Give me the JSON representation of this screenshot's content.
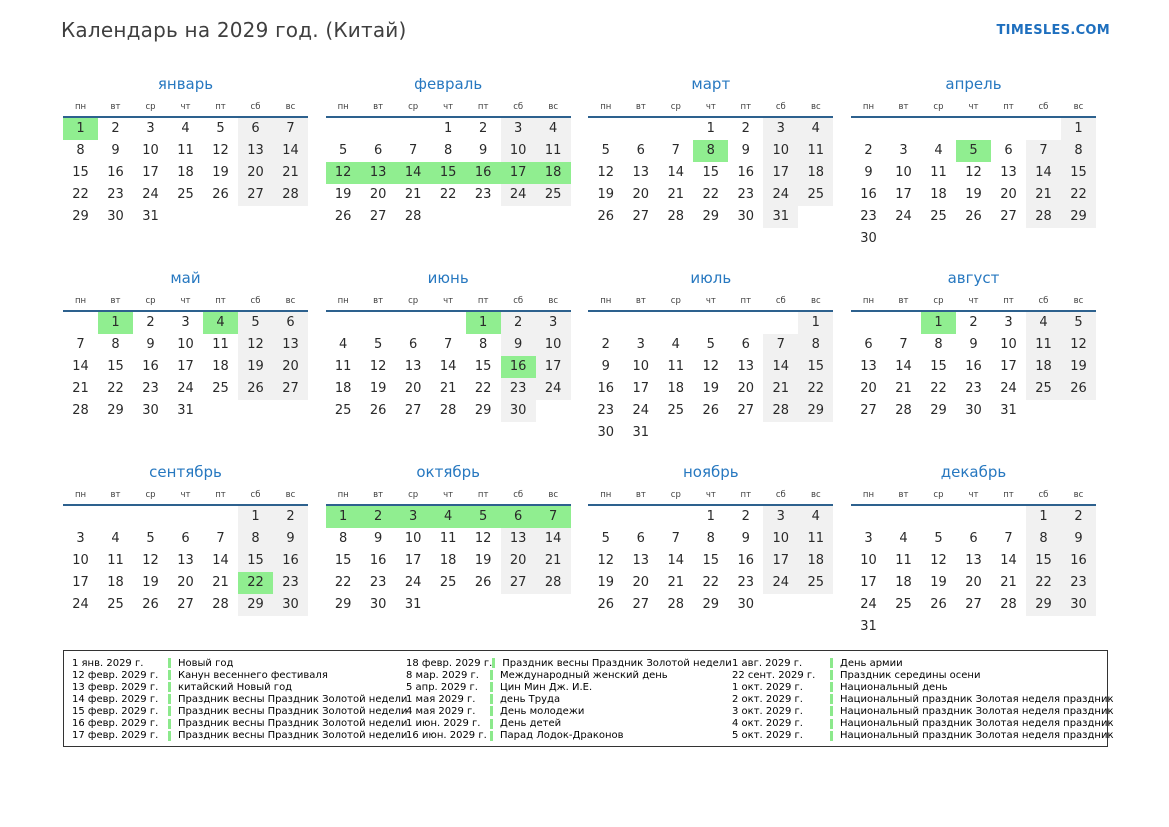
{
  "header": {
    "title": "Календарь на 2029 год. (Китай)",
    "site": "TIMESLES.COM"
  },
  "colors": {
    "holiday_bg": "#90ee90",
    "weekend_bg": "#f1f1f1",
    "month_title": "#2778c0",
    "weekday_rule": "#2d618e",
    "site_link": "#1e6fbe"
  },
  "calendar": {
    "year": "2029",
    "weekdays": [
      "пн",
      "вт",
      "ср",
      "чт",
      "пт",
      "сб",
      "вс"
    ],
    "months": [
      {
        "name": "январь",
        "holidays": [
          1
        ],
        "weeks": [
          [
            "1",
            "2",
            "3",
            "4",
            "5",
            "6",
            "7"
          ],
          [
            "8",
            "9",
            "10",
            "11",
            "12",
            "13",
            "14"
          ],
          [
            "15",
            "16",
            "17",
            "18",
            "19",
            "20",
            "21"
          ],
          [
            "22",
            "23",
            "24",
            "25",
            "26",
            "27",
            "28"
          ],
          [
            "29",
            "30",
            "31",
            "",
            "",
            "",
            ""
          ]
        ]
      },
      {
        "name": "февраль",
        "holidays": [
          12,
          13,
          14,
          15,
          16,
          17,
          18
        ],
        "weeks": [
          [
            "",
            "",
            "",
            "1",
            "2",
            "3",
            "4"
          ],
          [
            "5",
            "6",
            "7",
            "8",
            "9",
            "10",
            "11"
          ],
          [
            "12",
            "13",
            "14",
            "15",
            "16",
            "17",
            "18"
          ],
          [
            "19",
            "20",
            "21",
            "22",
            "23",
            "24",
            "25"
          ],
          [
            "26",
            "27",
            "28",
            "",
            "",
            "",
            ""
          ]
        ]
      },
      {
        "name": "март",
        "holidays": [
          8
        ],
        "weeks": [
          [
            "",
            "",
            "",
            "1",
            "2",
            "3",
            "4"
          ],
          [
            "5",
            "6",
            "7",
            "8",
            "9",
            "10",
            "11"
          ],
          [
            "12",
            "13",
            "14",
            "15",
            "16",
            "17",
            "18"
          ],
          [
            "19",
            "20",
            "21",
            "22",
            "23",
            "24",
            "25"
          ],
          [
            "26",
            "27",
            "28",
            "29",
            "30",
            "31",
            ""
          ]
        ]
      },
      {
        "name": "апрель",
        "holidays": [
          5
        ],
        "weeks": [
          [
            "",
            "",
            "",
            "",
            "",
            "",
            "1"
          ],
          [
            "2",
            "3",
            "4",
            "5",
            "6",
            "7",
            "8"
          ],
          [
            "9",
            "10",
            "11",
            "12",
            "13",
            "14",
            "15"
          ],
          [
            "16",
            "17",
            "18",
            "19",
            "20",
            "21",
            "22"
          ],
          [
            "23",
            "24",
            "25",
            "26",
            "27",
            "28",
            "29"
          ],
          [
            "30",
            "",
            "",
            "",
            "",
            "",
            ""
          ]
        ]
      },
      {
        "name": "май",
        "holidays": [
          1,
          4
        ],
        "weeks": [
          [
            "",
            "1",
            "2",
            "3",
            "4",
            "5",
            "6"
          ],
          [
            "7",
            "8",
            "9",
            "10",
            "11",
            "12",
            "13"
          ],
          [
            "14",
            "15",
            "16",
            "17",
            "18",
            "19",
            "20"
          ],
          [
            "21",
            "22",
            "23",
            "24",
            "25",
            "26",
            "27"
          ],
          [
            "28",
            "29",
            "30",
            "31",
            "",
            "",
            ""
          ]
        ]
      },
      {
        "name": "июнь",
        "holidays": [
          1,
          16
        ],
        "weeks": [
          [
            "",
            "",
            "",
            "",
            "1",
            "2",
            "3"
          ],
          [
            "4",
            "5",
            "6",
            "7",
            "8",
            "9",
            "10"
          ],
          [
            "11",
            "12",
            "13",
            "14",
            "15",
            "16",
            "17"
          ],
          [
            "18",
            "19",
            "20",
            "21",
            "22",
            "23",
            "24"
          ],
          [
            "25",
            "26",
            "27",
            "28",
            "29",
            "30",
            ""
          ]
        ]
      },
      {
        "name": "июль",
        "holidays": [],
        "weeks": [
          [
            "",
            "",
            "",
            "",
            "",
            "",
            "1"
          ],
          [
            "2",
            "3",
            "4",
            "5",
            "6",
            "7",
            "8"
          ],
          [
            "9",
            "10",
            "11",
            "12",
            "13",
            "14",
            "15"
          ],
          [
            "16",
            "17",
            "18",
            "19",
            "20",
            "21",
            "22"
          ],
          [
            "23",
            "24",
            "25",
            "26",
            "27",
            "28",
            "29"
          ],
          [
            "30",
            "31",
            "",
            "",
            "",
            "",
            ""
          ]
        ]
      },
      {
        "name": "август",
        "holidays": [
          1
        ],
        "weeks": [
          [
            "",
            "",
            "1",
            "2",
            "3",
            "4",
            "5"
          ],
          [
            "6",
            "7",
            "8",
            "9",
            "10",
            "11",
            "12"
          ],
          [
            "13",
            "14",
            "15",
            "16",
            "17",
            "18",
            "19"
          ],
          [
            "20",
            "21",
            "22",
            "23",
            "24",
            "25",
            "26"
          ],
          [
            "27",
            "28",
            "29",
            "30",
            "31",
            "",
            ""
          ]
        ]
      },
      {
        "name": "сентябрь",
        "holidays": [
          22
        ],
        "weeks": [
          [
            "",
            "",
            "",
            "",
            "",
            "1",
            "2"
          ],
          [
            "3",
            "4",
            "5",
            "6",
            "7",
            "8",
            "9"
          ],
          [
            "10",
            "11",
            "12",
            "13",
            "14",
            "15",
            "16"
          ],
          [
            "17",
            "18",
            "19",
            "20",
            "21",
            "22",
            "23"
          ],
          [
            "24",
            "25",
            "26",
            "27",
            "28",
            "29",
            "30"
          ]
        ]
      },
      {
        "name": "октябрь",
        "holidays": [
          1,
          2,
          3,
          4,
          5,
          6,
          7
        ],
        "weeks": [
          [
            "1",
            "2",
            "3",
            "4",
            "5",
            "6",
            "7"
          ],
          [
            "8",
            "9",
            "10",
            "11",
            "12",
            "13",
            "14"
          ],
          [
            "15",
            "16",
            "17",
            "18",
            "19",
            "20",
            "21"
          ],
          [
            "22",
            "23",
            "24",
            "25",
            "26",
            "27",
            "28"
          ],
          [
            "29",
            "30",
            "31",
            "",
            "",
            "",
            ""
          ]
        ]
      },
      {
        "name": "ноябрь",
        "holidays": [],
        "weeks": [
          [
            "",
            "",
            "",
            "1",
            "2",
            "3",
            "4"
          ],
          [
            "5",
            "6",
            "7",
            "8",
            "9",
            "10",
            "11"
          ],
          [
            "12",
            "13",
            "14",
            "15",
            "16",
            "17",
            "18"
          ],
          [
            "19",
            "20",
            "21",
            "22",
            "23",
            "24",
            "25"
          ],
          [
            "26",
            "27",
            "28",
            "29",
            "30",
            "",
            ""
          ]
        ]
      },
      {
        "name": "декабрь",
        "holidays": [],
        "weeks": [
          [
            "",
            "",
            "",
            "",
            "",
            "1",
            "2"
          ],
          [
            "3",
            "4",
            "5",
            "6",
            "7",
            "8",
            "9"
          ],
          [
            "10",
            "11",
            "12",
            "13",
            "14",
            "15",
            "16"
          ],
          [
            "17",
            "18",
            "19",
            "20",
            "21",
            "22",
            "23"
          ],
          [
            "24",
            "25",
            "26",
            "27",
            "28",
            "29",
            "30"
          ],
          [
            "31",
            "",
            "",
            "",
            "",
            "",
            ""
          ]
        ]
      }
    ]
  },
  "legend": {
    "columns": [
      [
        {
          "date": "1 янв. 2029 г.",
          "name": "Новый год"
        },
        {
          "date": "12 февр. 2029 г.",
          "name": "Канун весеннего фестиваля"
        },
        {
          "date": "13 февр. 2029 г.",
          "name": "китайский Новый год"
        },
        {
          "date": "14 февр. 2029 г.",
          "name": "Праздник весны Праздник Золотой недели"
        },
        {
          "date": "15 февр. 2029 г.",
          "name": "Праздник весны Праздник Золотой недели"
        },
        {
          "date": "16 февр. 2029 г.",
          "name": "Праздник весны Праздник Золотой недели"
        },
        {
          "date": "17 февр. 2029 г.",
          "name": "Праздник весны Праздник Золотой недели"
        }
      ],
      [
        {
          "date": "18 февр. 2029 г.",
          "name": "Праздник весны Праздник Золотой недели"
        },
        {
          "date": "8 мар. 2029 г.",
          "name": "Международный женский день"
        },
        {
          "date": "5 апр. 2029 г.",
          "name": "Цин Мин Дж. И.Е."
        },
        {
          "date": "1 мая 2029 г.",
          "name": "день Труда"
        },
        {
          "date": "4 мая 2029 г.",
          "name": "День молодежи"
        },
        {
          "date": "1 июн. 2029 г.",
          "name": "День детей"
        },
        {
          "date": "16 июн. 2029 г.",
          "name": "Парад Лодок-Драконов"
        }
      ],
      [
        {
          "date": "1 авг. 2029 г.",
          "name": "День армии"
        },
        {
          "date": "22 сент. 2029 г.",
          "name": "Праздник середины осени"
        },
        {
          "date": "1 окт. 2029 г.",
          "name": "Национальный день"
        },
        {
          "date": "2 окт. 2029 г.",
          "name": "Национальный праздник Золотая неделя праздник"
        },
        {
          "date": "3 окт. 2029 г.",
          "name": "Национальный праздник Золотая неделя праздник"
        },
        {
          "date": "4 окт. 2029 г.",
          "name": "Национальный праздник Золотая неделя праздник"
        },
        {
          "date": "5 окт. 2029 г.",
          "name": "Национальный праздник Золотая неделя праздник"
        }
      ]
    ]
  }
}
